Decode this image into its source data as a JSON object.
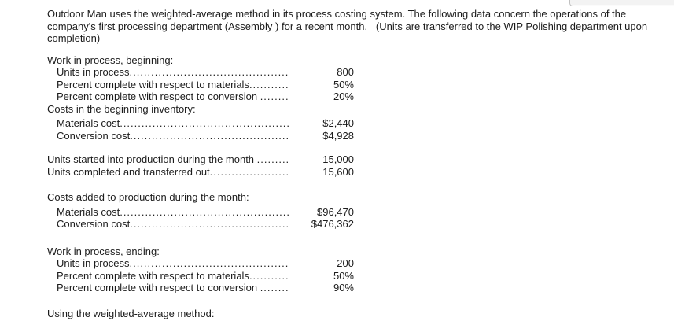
{
  "intro": "Outdoor Man uses the weighted-average method in its process costing system. The following data concern the operations of the company's first processing department (Assembly ) for a recent month.   (Units are transferred to the WIP Polishing department upon completion)",
  "sections": [
    {
      "heading": "Work in process, beginning:",
      "rows": [
        {
          "label": "Units in process",
          "value": "800"
        },
        {
          "label": "Percent complete with respect to materials",
          "value": "50%"
        },
        {
          "label": "Percent complete with respect to conversion ",
          "value": "20%"
        }
      ]
    },
    {
      "heading": "Costs in the beginning inventory:",
      "rows": [
        {
          "label": "Materials cost",
          "value": "$2,440"
        },
        {
          "label": "Conversion cost",
          "value": "$4,928"
        }
      ]
    },
    {
      "heading": "",
      "rows": [
        {
          "label": "Units started into production during the month ",
          "value": "15,000"
        },
        {
          "label": "Units completed and transferred out",
          "value": "15,600"
        }
      ]
    },
    {
      "heading": "Costs added to production during the month:",
      "rows": [
        {
          "label": "Materials cost",
          "value": "$96,470"
        },
        {
          "label": "Conversion cost",
          "value": "$476,362"
        }
      ]
    },
    {
      "heading": "Work in process, ending:",
      "rows": [
        {
          "label": "Units in process",
          "value": "200"
        },
        {
          "label": "Percent complete with respect to materials",
          "value": "50%"
        },
        {
          "label": "Percent complete with respect to conversion ",
          "value": "90%"
        }
      ]
    }
  ],
  "footer": "Using the weighted-average method:"
}
